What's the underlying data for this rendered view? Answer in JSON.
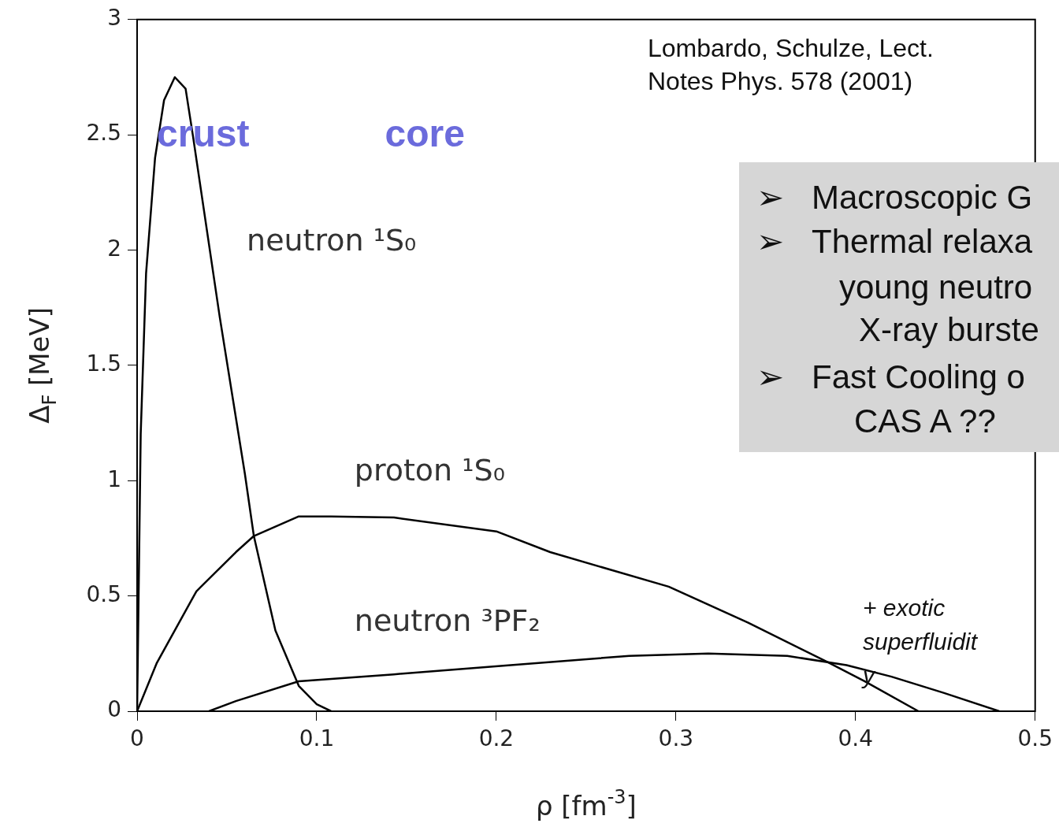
{
  "chart_data": {
    "type": "line",
    "xlabel": "ρ [fm$^{-3}$]",
    "ylabel": "Δ$_{F}$ [MeV]",
    "xlim": [
      0,
      0.5
    ],
    "xticks": [
      0,
      0.1,
      0.2,
      0.3,
      0.4,
      0.5
    ],
    "ylim": [
      0,
      3
    ],
    "yticks": [
      0,
      0.5,
      1,
      1.5,
      2,
      2.5,
      3
    ],
    "grid": false,
    "legend": false,
    "marker": "none",
    "line_style": "solid",
    "series": [
      {
        "name": "neutron ¹S₀",
        "color": "#000000",
        "x": [
          0,
          0.002,
          0.005,
          0.01,
          0.015,
          0.021,
          0.027,
          0.031,
          0.046,
          0.06,
          0.065,
          0.077,
          0.09,
          0.1,
          0.108
        ],
        "values": [
          0,
          1.2,
          1.9,
          2.4,
          2.65,
          2.75,
          2.7,
          2.5,
          1.71,
          1.03,
          0.76,
          0.35,
          0.11,
          0.03,
          0
        ]
      },
      {
        "name": "proton ¹S₀",
        "color": "#000000",
        "x": [
          0,
          0.011,
          0.033,
          0.055,
          0.065,
          0.09,
          0.108,
          0.143,
          0.2,
          0.23,
          0.296,
          0.34,
          0.384,
          0.405,
          0.435
        ],
        "values": [
          0,
          0.21,
          0.52,
          0.69,
          0.76,
          0.845,
          0.845,
          0.84,
          0.78,
          0.69,
          0.54,
          0.385,
          0.215,
          0.13,
          0
        ]
      },
      {
        "name": "neutron ³PF₂",
        "color": "#000000",
        "x": [
          0.04,
          0.055,
          0.09,
          0.143,
          0.208,
          0.274,
          0.318,
          0.362,
          0.395,
          0.42,
          0.449,
          0.48
        ],
        "values": [
          0,
          0.044,
          0.13,
          0.16,
          0.2,
          0.24,
          0.25,
          0.24,
          0.2,
          0.15,
          0.08,
          0
        ]
      }
    ],
    "annotations": [
      "Lombardo, Schulze, Lect.",
      "Notes Phys. 578 (2001)",
      "crust",
      "core",
      "➢",
      "Macroscopic G",
      "➢",
      "Thermal relaxa",
      "young neutro",
      "X-ray burste",
      "➢",
      "Fast Cooling o",
      "CAS A ??",
      "+ exotic",
      "superfluidit",
      "y"
    ]
  }
}
